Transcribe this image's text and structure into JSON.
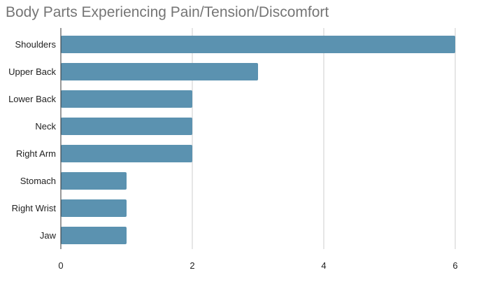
{
  "chart_data": {
    "type": "bar",
    "orientation": "horizontal",
    "title": "Body Parts Experiencing Pain/Tension/Discomfort",
    "categories": [
      "Shoulders",
      "Upper Back",
      "Lower Back",
      "Neck",
      "Right Arm",
      "Stomach",
      "Right Wrist",
      "Jaw"
    ],
    "values": [
      6,
      3,
      2,
      2,
      2,
      1,
      1,
      1
    ],
    "xlim": [
      0,
      6
    ],
    "xticks": [
      0,
      2,
      4,
      6
    ],
    "grid": true,
    "bar_color": "#5b92b0"
  }
}
